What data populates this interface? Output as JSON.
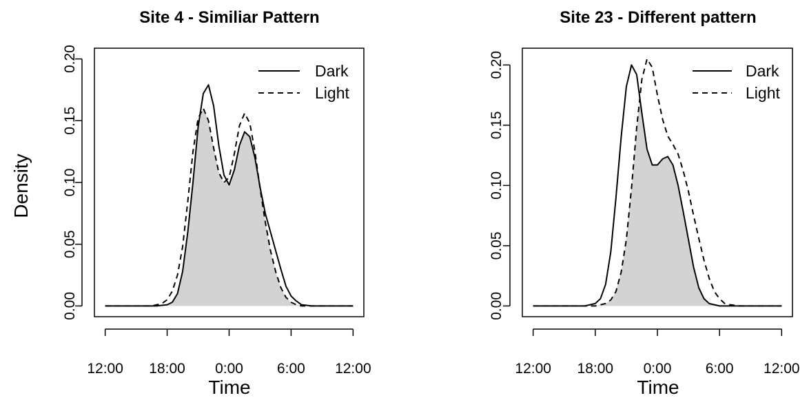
{
  "shared": {
    "ylabel": "Density",
    "fill_color": "#d3d3d3",
    "line_color": "#000000"
  },
  "chart_data": [
    {
      "type": "line",
      "title": "Site 4 - Similiar Pattern",
      "xlabel": "Time",
      "ylabel": "Density",
      "xlim": [
        12,
        36
      ],
      "ylim": [
        0,
        0.2
      ],
      "x_ticks": [
        {
          "value": 12,
          "label": "12:00"
        },
        {
          "value": 18,
          "label": "18:00"
        },
        {
          "value": 24,
          "label": "0:00"
        },
        {
          "value": 30,
          "label": "6:00"
        },
        {
          "value": 36,
          "label": "12:00"
        }
      ],
      "y_ticks": [
        {
          "value": 0.0,
          "label": "0.00"
        },
        {
          "value": 0.05,
          "label": "0.05"
        },
        {
          "value": 0.1,
          "label": "0.10"
        },
        {
          "value": 0.15,
          "label": "0.15"
        },
        {
          "value": 0.2,
          "label": "0.20"
        }
      ],
      "legend": {
        "position": "top-right",
        "entries": [
          "Dark",
          "Light"
        ]
      },
      "shaded_series": "overlap",
      "series": [
        {
          "name": "Dark",
          "line": "solid",
          "x": [
            12,
            17,
            18,
            18.5,
            19,
            19.5,
            20,
            20.5,
            21,
            21.5,
            22,
            22.5,
            23,
            23.5,
            24,
            24.5,
            25,
            25.5,
            26,
            26.5,
            27,
            27.5,
            28,
            28.5,
            29,
            29.5,
            30,
            30.5,
            31,
            32,
            33,
            36
          ],
          "y": [
            0,
            0,
            0.001,
            0.003,
            0.01,
            0.028,
            0.06,
            0.1,
            0.145,
            0.172,
            0.179,
            0.162,
            0.13,
            0.106,
            0.098,
            0.11,
            0.13,
            0.141,
            0.137,
            0.12,
            0.096,
            0.075,
            0.06,
            0.045,
            0.03,
            0.016,
            0.008,
            0.004,
            0.001,
            0,
            0,
            0
          ]
        },
        {
          "name": "Light",
          "line": "dashed",
          "x": [
            12,
            16.5,
            17,
            17.5,
            18,
            18.5,
            19,
            19.5,
            20,
            20.5,
            21,
            21.5,
            22,
            22.5,
            23,
            23.5,
            24,
            24.5,
            25,
            25.5,
            26,
            26.5,
            27,
            27.5,
            28,
            28.5,
            29,
            29.5,
            30,
            30.5,
            31,
            32,
            36
          ],
          "y": [
            0,
            0,
            0.001,
            0.002,
            0.005,
            0.012,
            0.025,
            0.048,
            0.085,
            0.125,
            0.152,
            0.16,
            0.15,
            0.128,
            0.108,
            0.1,
            0.104,
            0.123,
            0.146,
            0.156,
            0.148,
            0.125,
            0.095,
            0.068,
            0.045,
            0.028,
            0.015,
            0.007,
            0.003,
            0.001,
            0,
            0,
            0
          ]
        }
      ]
    },
    {
      "type": "line",
      "title": "Site 23 - Different pattern",
      "xlabel": "Time",
      "ylabel": "",
      "xlim": [
        12,
        36
      ],
      "ylim": [
        0,
        0.205
      ],
      "x_ticks": [
        {
          "value": 12,
          "label": "12:00"
        },
        {
          "value": 18,
          "label": "18:00"
        },
        {
          "value": 24,
          "label": "0:00"
        },
        {
          "value": 30,
          "label": "6:00"
        },
        {
          "value": 36,
          "label": "12:00"
        }
      ],
      "y_ticks": [
        {
          "value": 0.0,
          "label": "0.00"
        },
        {
          "value": 0.05,
          "label": "0.05"
        },
        {
          "value": 0.1,
          "label": "0.10"
        },
        {
          "value": 0.15,
          "label": "0.15"
        },
        {
          "value": 0.2,
          "label": "0.20"
        }
      ],
      "legend": {
        "position": "top-right",
        "entries": [
          "Dark",
          "Light"
        ]
      },
      "shaded_series": "overlap",
      "series": [
        {
          "name": "Dark",
          "line": "solid",
          "x": [
            12,
            17,
            18,
            18.5,
            19,
            19.5,
            20,
            20.5,
            21,
            21.5,
            22,
            22.5,
            23,
            23.5,
            24,
            24.5,
            25,
            25.5,
            26,
            26.5,
            27,
            27.5,
            28,
            28.5,
            29,
            29.5,
            30,
            31,
            36
          ],
          "y": [
            0,
            0,
            0.002,
            0.006,
            0.018,
            0.045,
            0.09,
            0.14,
            0.182,
            0.2,
            0.192,
            0.16,
            0.13,
            0.117,
            0.117,
            0.122,
            0.124,
            0.117,
            0.1,
            0.078,
            0.055,
            0.032,
            0.015,
            0.006,
            0.002,
            0.001,
            0,
            0,
            0
          ]
        },
        {
          "name": "Light",
          "line": "dashed",
          "x": [
            12,
            18,
            19,
            19.5,
            20,
            20.5,
            21,
            21.5,
            22,
            22.5,
            23,
            23.5,
            24,
            24.5,
            25,
            25.5,
            26,
            26.5,
            27,
            27.5,
            28,
            28.5,
            29,
            29.5,
            30,
            30.5,
            31,
            32,
            36
          ],
          "y": [
            0,
            0,
            0.002,
            0.005,
            0.012,
            0.028,
            0.055,
            0.098,
            0.148,
            0.188,
            0.205,
            0.198,
            0.175,
            0.155,
            0.141,
            0.134,
            0.126,
            0.112,
            0.095,
            0.075,
            0.056,
            0.038,
            0.023,
            0.012,
            0.006,
            0.002,
            0.001,
            0,
            0
          ]
        }
      ]
    }
  ]
}
